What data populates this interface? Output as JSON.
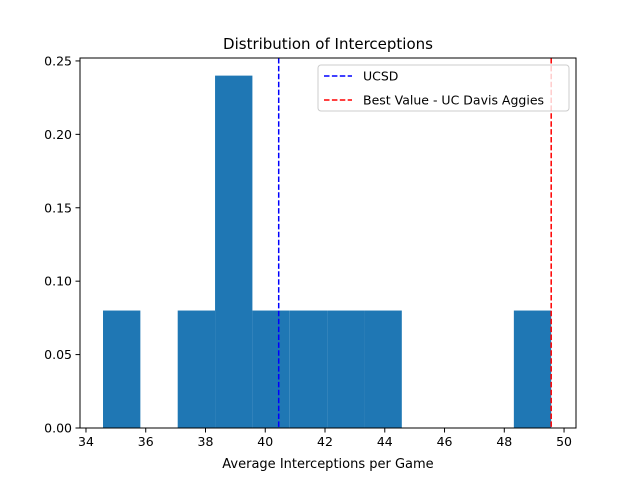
{
  "chart_data": {
    "type": "histogram",
    "title": "Distribution of Interceptions",
    "xlabel": "Average Interceptions per Game",
    "ylabel": "",
    "xlim": [
      33.8,
      50.4
    ],
    "ylim": [
      0,
      0.252
    ],
    "xticks": [
      34,
      36,
      38,
      40,
      42,
      44,
      46,
      48,
      50
    ],
    "yticks": [
      0.0,
      0.05,
      0.1,
      0.15,
      0.2,
      0.25
    ],
    "ytick_labels": [
      "0.00",
      "0.05",
      "0.10",
      "0.15",
      "0.20",
      "0.25"
    ],
    "bar_color": "#1f77b4",
    "bins": [
      {
        "x0": 34.57,
        "x1": 35.82,
        "value": 0.08
      },
      {
        "x0": 35.82,
        "x1": 37.07,
        "value": 0.0
      },
      {
        "x0": 37.07,
        "x1": 38.32,
        "value": 0.08
      },
      {
        "x0": 38.32,
        "x1": 39.57,
        "value": 0.24
      },
      {
        "x0": 39.57,
        "x1": 40.82,
        "value": 0.08
      },
      {
        "x0": 40.82,
        "x1": 42.07,
        "value": 0.08
      },
      {
        "x0": 42.07,
        "x1": 43.32,
        "value": 0.08
      },
      {
        "x0": 43.32,
        "x1": 44.57,
        "value": 0.08
      },
      {
        "x0": 44.57,
        "x1": 45.82,
        "value": 0.0
      },
      {
        "x0": 45.82,
        "x1": 47.07,
        "value": 0.0
      },
      {
        "x0": 47.07,
        "x1": 48.32,
        "value": 0.0
      },
      {
        "x0": 48.32,
        "x1": 49.57,
        "value": 0.08
      }
    ],
    "reference_lines": [
      {
        "name": "UCSD",
        "x": 40.45,
        "color": "#0000ff"
      },
      {
        "name": "Best Value - UC Davis Aggies",
        "x": 49.57,
        "color": "#ff0000"
      }
    ],
    "legend_position": "top-right",
    "grid": false
  }
}
